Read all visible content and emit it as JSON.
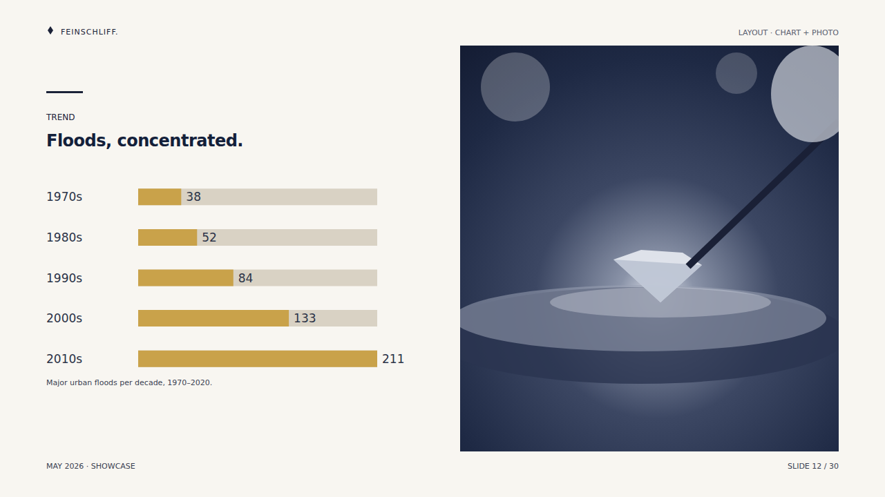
{
  "slide": {
    "brand": "FEINSCHLIFF.",
    "header_right": "LAYOUT · CHART + PHOTO",
    "kicker": "TREND",
    "footer_left": "MAY 2026 · SHOWCASE",
    "footer_right": "SLIDE 12 / 30"
  },
  "chart_data": {
    "type": "bar",
    "orientation": "horizontal",
    "title": "Floods, concentrated.",
    "caption": "Major urban floods per decade, 1970–2020.",
    "categories": [
      "1970s",
      "1980s",
      "1990s",
      "2000s",
      "2010s"
    ],
    "values": [
      38,
      52,
      84,
      133,
      211
    ],
    "color": "#c9a24a",
    "xlim": [
      0,
      211
    ],
    "grid": false,
    "data_labels": true,
    "tick_labels": "y"
  }
}
